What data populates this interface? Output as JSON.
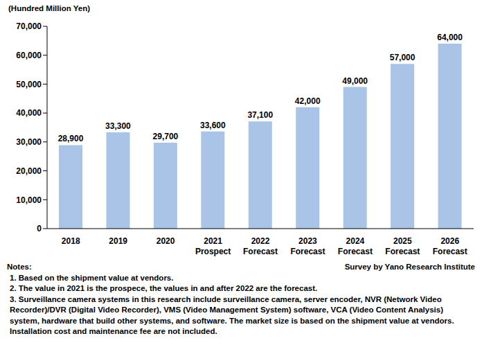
{
  "chart_data": {
    "type": "bar",
    "y_label": "(Hundred Million Yen)",
    "categories": [
      "2018",
      "2019",
      "2020",
      "2021\nProspect",
      "2022\nForecast",
      "2023\nForecast",
      "2024\nForecast",
      "2025\nForecast",
      "2026\nForecast"
    ],
    "values": [
      28900,
      33300,
      29700,
      33600,
      37100,
      42000,
      49000,
      57000,
      64000
    ],
    "value_labels": [
      "28,900",
      "33,300",
      "29,700",
      "33,600",
      "37,100",
      "42,000",
      "49,000",
      "57,000",
      "64,000"
    ],
    "data_labels": true,
    "color": "#a9c4e6",
    "ylim": [
      0,
      70000
    ],
    "yticks": [
      0,
      {
        "value": 10000,
        "label": "10,000"
      },
      {
        "value": 20000,
        "label": "20,000"
      },
      {
        "value": 30000,
        "label": "30,000"
      },
      {
        "value": 40000,
        "label": "40,000"
      },
      {
        "value": 50000,
        "label": "50,000"
      },
      {
        "value": 60000,
        "label": "60,000"
      },
      {
        "value": 70000,
        "label": "70,000"
      }
    ],
    "grid": false,
    "notes_title": "Notes:",
    "source": "Survey by Yano Research Institute",
    "notes": [
      "1. Based on the shipment value at vendors.",
      "2. The value in 2021 is the prospece, the values in and after 2022 are the forecast.",
      "3. Surveillance camera systems in this research include surveillance camera, server encoder, NVR (Network Video Recorder)/DVR (Digital Video Recorder), VMS (Video Management System) software, VCA (Video  Content Analysis) system, hardware that build other systems, and software. The market size is based on the shipment value at vendors. Installation cost and maintenance fee are not included."
    ]
  }
}
